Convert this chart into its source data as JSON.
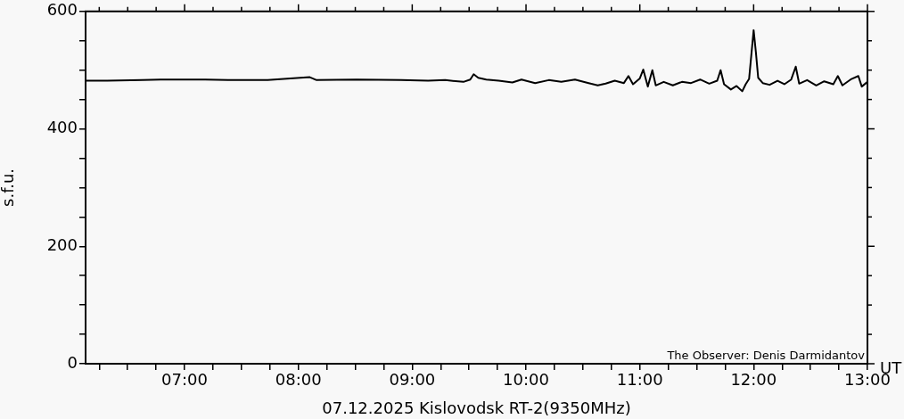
{
  "chart_data": {
    "type": "line",
    "xlabel": "07.12.2025 Kislovodsk RT-2(9350MHz)",
    "ylabel": "s.f.u.",
    "annotations": [
      "The Observer: Denis Darmidantov",
      "UT"
    ],
    "x": [
      6.13,
      6.32,
      6.63,
      6.79,
      7.18,
      7.42,
      7.73,
      8.1,
      8.16,
      8.51,
      8.9,
      9.14,
      9.29,
      9.45,
      9.51,
      9.54,
      9.58,
      9.65,
      9.76,
      9.88,
      9.96,
      10.08,
      10.2,
      10.31,
      10.43,
      10.55,
      10.63,
      10.7,
      10.78,
      10.86,
      10.9,
      10.94,
      11.0,
      11.03,
      11.07,
      11.11,
      11.14,
      11.21,
      11.29,
      11.37,
      11.45,
      11.53,
      11.61,
      11.68,
      11.71,
      11.74,
      11.8,
      11.85,
      11.9,
      11.93,
      11.96,
      12.0,
      12.02,
      12.04,
      12.08,
      12.14,
      12.21,
      12.27,
      12.33,
      12.37,
      12.4,
      12.47,
      12.55,
      12.62,
      12.7,
      12.74,
      12.78,
      12.86,
      12.92,
      12.95,
      13.0
    ],
    "series": [
      {
        "color": "#000000",
        "values": [
          482,
          482,
          483,
          484,
          484,
          483,
          483,
          488,
          483,
          484,
          483,
          482,
          483,
          480,
          484,
          493,
          487,
          484,
          482,
          479,
          484,
          478,
          483,
          480,
          484,
          478,
          474,
          477,
          482,
          478,
          490,
          476,
          486,
          501,
          472,
          500,
          474,
          480,
          474,
          480,
          478,
          484,
          477,
          482,
          500,
          476,
          467,
          473,
          464,
          476,
          485,
          568,
          530,
          487,
          478,
          475,
          482,
          476,
          484,
          506,
          477,
          483,
          474,
          481,
          476,
          490,
          474,
          485,
          490,
          472,
          480
        ]
      }
    ],
    "xlim": [
      6.13,
      13
    ],
    "ylim": [
      0,
      600
    ],
    "xticks": [
      {
        "value": 6.25,
        "label": null
      },
      {
        "value": 6.5,
        "label": null
      },
      {
        "value": 6.75,
        "label": null
      },
      {
        "value": 7,
        "label": "07:00"
      },
      {
        "value": 7.25,
        "label": null
      },
      {
        "value": 7.5,
        "label": null
      },
      {
        "value": 7.75,
        "label": null
      },
      {
        "value": 8,
        "label": "08:00"
      },
      {
        "value": 8.25,
        "label": null
      },
      {
        "value": 8.5,
        "label": null
      },
      {
        "value": 8.75,
        "label": null
      },
      {
        "value": 9,
        "label": "09:00"
      },
      {
        "value": 9.25,
        "label": null
      },
      {
        "value": 9.5,
        "label": null
      },
      {
        "value": 9.75,
        "label": null
      },
      {
        "value": 10,
        "label": "10:00"
      },
      {
        "value": 10.25,
        "label": null
      },
      {
        "value": 10.5,
        "label": null
      },
      {
        "value": 10.75,
        "label": null
      },
      {
        "value": 11,
        "label": "11:00"
      },
      {
        "value": 11.25,
        "label": null
      },
      {
        "value": 11.5,
        "label": null
      },
      {
        "value": 11.75,
        "label": null
      },
      {
        "value": 12,
        "label": "12:00"
      },
      {
        "value": 12.25,
        "label": null
      },
      {
        "value": 12.5,
        "label": null
      },
      {
        "value": 12.75,
        "label": null
      },
      {
        "value": 13,
        "label": "13:00"
      }
    ],
    "yticks": [
      0,
      {
        "value": 50,
        "label": null
      },
      {
        "value": 100,
        "label": null
      },
      {
        "value": 150,
        "label": null
      },
      200,
      {
        "value": 250,
        "label": null
      },
      {
        "value": 300,
        "label": null
      },
      {
        "value": 350,
        "label": null
      },
      400,
      {
        "value": 450,
        "label": null
      },
      {
        "value": 500,
        "label": null
      },
      {
        "value": 550,
        "label": null
      },
      600
    ],
    "grid": false,
    "legend": false,
    "marker": "none",
    "line_style": "solid"
  }
}
